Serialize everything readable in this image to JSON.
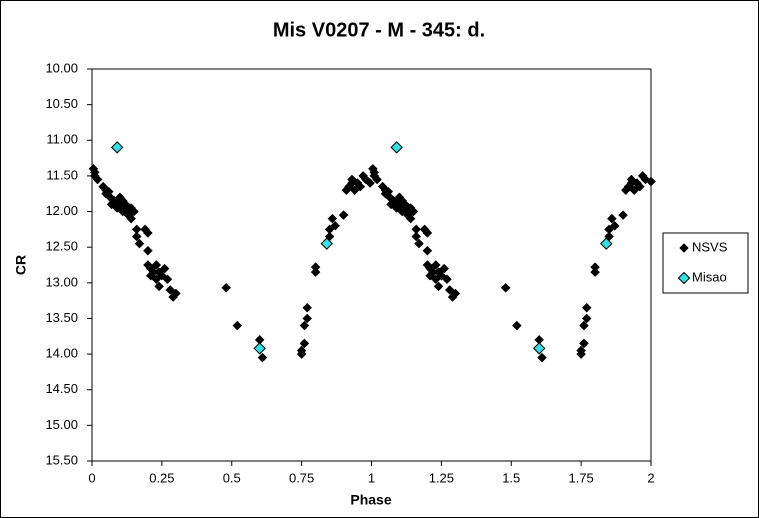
{
  "chart_data": {
    "type": "scatter",
    "title": "Mis V0207 - M - 345: d.",
    "x_label": "Phase",
    "y_label": "CR",
    "xlim": [
      0,
      2
    ],
    "xticks": [
      0,
      0.25,
      0.5,
      0.75,
      1,
      1.25,
      1.5,
      1.75,
      2
    ],
    "ylim": [
      10,
      15.5
    ],
    "y_reversed": true,
    "yticks": [
      {
        "value": 10,
        "label": "10.00"
      },
      {
        "value": 10.5,
        "label": "10.50"
      },
      {
        "value": 11,
        "label": "11.00"
      },
      {
        "value": 11.5,
        "label": "11.50"
      },
      {
        "value": 12,
        "label": "12.00"
      },
      {
        "value": 12.5,
        "label": "12.50"
      },
      {
        "value": 13,
        "label": "13.00"
      },
      {
        "value": 13.5,
        "label": "13.50"
      },
      {
        "value": 14,
        "label": "14.00"
      },
      {
        "value": 14.5,
        "label": "14.50"
      },
      {
        "value": 15,
        "label": "15.00"
      },
      {
        "value": 15.5,
        "label": "15.50"
      }
    ],
    "grid": false,
    "legend": "right",
    "series": [
      {
        "name": "NSVS",
        "color": "#000000",
        "x": [
          0.005,
          0.01,
          0.01,
          0.02,
          0.04,
          0.05,
          0.05,
          0.06,
          0.065,
          0.07,
          0.08,
          0.09,
          0.09,
          0.1,
          0.1,
          0.11,
          0.11,
          0.12,
          0.12,
          0.13,
          0.13,
          0.14,
          0.14,
          0.15,
          0.16,
          0.16,
          0.17,
          0.19,
          0.2,
          0.2,
          0.2,
          0.21,
          0.21,
          0.22,
          0.23,
          0.23,
          0.24,
          0.24,
          0.25,
          0.26,
          0.27,
          0.28,
          0.29,
          0.3,
          0.48,
          0.52,
          0.6,
          0.61,
          0.75,
          0.75,
          0.76,
          0.76,
          0.77,
          0.77,
          0.8,
          0.8,
          0.85,
          0.85,
          0.86,
          0.87,
          0.9,
          0.91,
          0.92,
          0.93,
          0.93,
          0.94,
          0.95,
          0.96,
          0.97,
          0.98,
          0.995,
          1.005,
          1.01,
          1.01,
          1.02,
          1.04,
          1.05,
          1.05,
          1.06,
          1.065,
          1.07,
          1.08,
          1.09,
          1.09,
          1.1,
          1.1,
          1.11,
          1.11,
          1.12,
          1.12,
          1.13,
          1.13,
          1.14,
          1.14,
          1.15,
          1.16,
          1.16,
          1.17,
          1.19,
          1.2,
          1.2,
          1.2,
          1.21,
          1.21,
          1.22,
          1.23,
          1.23,
          1.24,
          1.24,
          1.25,
          1.26,
          1.27,
          1.28,
          1.29,
          1.3,
          1.48,
          1.52,
          1.6,
          1.61,
          1.75,
          1.75,
          1.76,
          1.76,
          1.77,
          1.77,
          1.8,
          1.8,
          1.85,
          1.85,
          1.86,
          1.87,
          1.9,
          1.91,
          1.92,
          1.93,
          1.93,
          1.94,
          1.95,
          1.96,
          1.97,
          1.98,
          2.0
        ],
        "values": [
          11.4,
          11.45,
          11.5,
          11.55,
          11.65,
          11.7,
          11.75,
          11.72,
          11.8,
          11.9,
          11.85,
          11.88,
          11.95,
          11.8,
          11.92,
          11.85,
          12.0,
          11.9,
          11.95,
          12.0,
          12.05,
          12.1,
          11.95,
          12.0,
          12.25,
          12.35,
          12.45,
          12.25,
          12.3,
          12.55,
          12.75,
          12.8,
          12.9,
          12.85,
          12.75,
          12.95,
          12.85,
          13.05,
          12.9,
          12.8,
          12.95,
          13.1,
          13.2,
          13.15,
          13.07,
          13.6,
          13.8,
          14.05,
          14.0,
          13.95,
          13.85,
          13.6,
          13.5,
          13.35,
          12.85,
          12.78,
          12.35,
          12.25,
          12.1,
          12.2,
          12.05,
          11.7,
          11.65,
          11.6,
          11.55,
          11.7,
          11.6,
          11.65,
          11.5,
          11.55,
          11.6,
          11.4,
          11.45,
          11.5,
          11.55,
          11.65,
          11.7,
          11.75,
          11.72,
          11.8,
          11.9,
          11.85,
          11.88,
          11.95,
          11.8,
          11.92,
          11.85,
          12.0,
          11.9,
          11.95,
          12.0,
          12.05,
          12.1,
          11.95,
          12.0,
          12.25,
          12.35,
          12.45,
          12.25,
          12.3,
          12.55,
          12.75,
          12.8,
          12.9,
          12.85,
          12.75,
          12.95,
          12.85,
          13.05,
          12.9,
          12.8,
          12.95,
          13.1,
          13.2,
          13.15,
          13.07,
          13.6,
          13.8,
          14.05,
          14.0,
          13.95,
          13.85,
          13.6,
          13.5,
          13.35,
          12.85,
          12.78,
          12.35,
          12.25,
          12.1,
          12.2,
          12.05,
          11.7,
          11.65,
          11.6,
          11.55,
          11.7,
          11.6,
          11.65,
          11.5,
          11.55,
          11.58
        ]
      },
      {
        "name": "Misao",
        "color": "#33e0e6",
        "x": [
          0.09,
          0.6,
          0.84,
          1.09,
          1.6,
          1.84
        ],
        "values": [
          11.1,
          13.92,
          12.45,
          11.1,
          13.92,
          12.45
        ]
      }
    ]
  }
}
